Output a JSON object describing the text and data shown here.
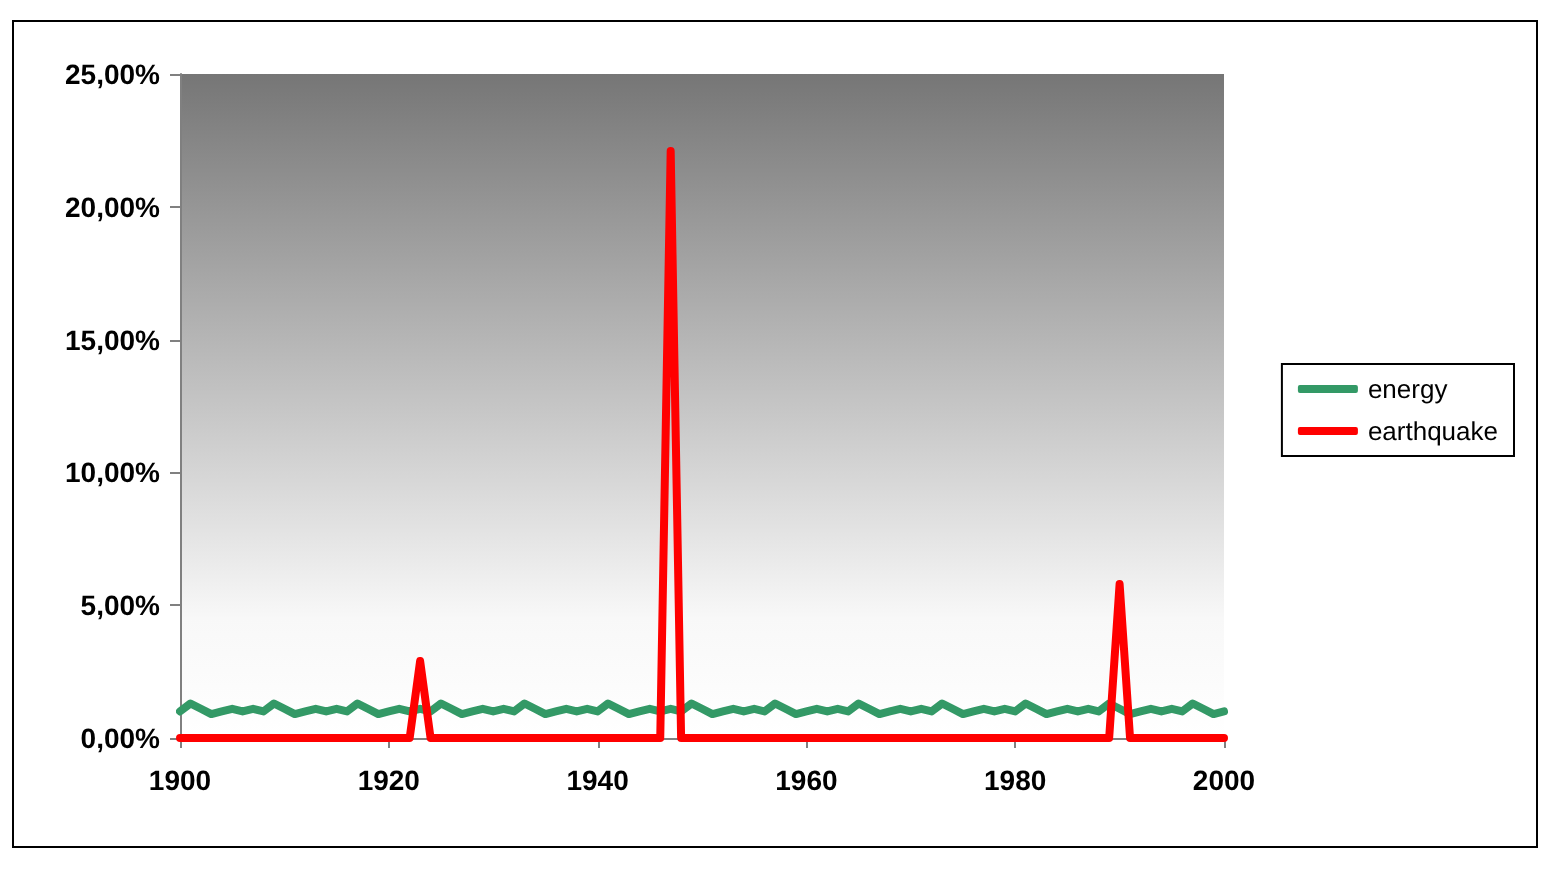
{
  "chart_data": {
    "type": "line",
    "x": [
      1900,
      1901,
      1902,
      1903,
      1904,
      1905,
      1906,
      1907,
      1908,
      1909,
      1910,
      1911,
      1912,
      1913,
      1914,
      1915,
      1916,
      1917,
      1918,
      1919,
      1920,
      1921,
      1922,
      1923,
      1924,
      1925,
      1926,
      1927,
      1928,
      1929,
      1930,
      1931,
      1932,
      1933,
      1934,
      1935,
      1936,
      1937,
      1938,
      1939,
      1940,
      1941,
      1942,
      1943,
      1944,
      1945,
      1946,
      1947,
      1948,
      1949,
      1950,
      1951,
      1952,
      1953,
      1954,
      1955,
      1956,
      1957,
      1958,
      1959,
      1960,
      1961,
      1962,
      1963,
      1964,
      1965,
      1966,
      1967,
      1968,
      1969,
      1970,
      1971,
      1972,
      1973,
      1974,
      1975,
      1976,
      1977,
      1978,
      1979,
      1980,
      1981,
      1982,
      1983,
      1984,
      1985,
      1986,
      1987,
      1988,
      1989,
      1990,
      1991,
      1992,
      1993,
      1994,
      1995,
      1996,
      1997,
      1998,
      1999,
      2000
    ],
    "series": [
      {
        "name": "energy",
        "color": "#339966",
        "values": [
          1.0,
          1.3,
          1.1,
          0.9,
          1.0,
          1.1,
          1.0,
          1.1,
          1.0,
          1.3,
          1.1,
          0.9,
          1.0,
          1.1,
          1.0,
          1.1,
          1.0,
          1.3,
          1.1,
          0.9,
          1.0,
          1.1,
          1.0,
          1.1,
          1.0,
          1.3,
          1.1,
          0.9,
          1.0,
          1.1,
          1.0,
          1.1,
          1.0,
          1.3,
          1.1,
          0.9,
          1.0,
          1.1,
          1.0,
          1.1,
          1.0,
          1.3,
          1.1,
          0.9,
          1.0,
          1.1,
          1.0,
          1.1,
          1.0,
          1.3,
          1.1,
          0.9,
          1.0,
          1.1,
          1.0,
          1.1,
          1.0,
          1.3,
          1.1,
          0.9,
          1.0,
          1.1,
          1.0,
          1.1,
          1.0,
          1.3,
          1.1,
          0.9,
          1.0,
          1.1,
          1.0,
          1.1,
          1.0,
          1.3,
          1.1,
          0.9,
          1.0,
          1.1,
          1.0,
          1.1,
          1.0,
          1.3,
          1.1,
          0.9,
          1.0,
          1.1,
          1.0,
          1.1,
          1.0,
          1.3,
          1.1,
          0.9,
          1.0,
          1.1,
          1.0,
          1.1,
          1.0,
          1.3,
          1.1,
          0.9,
          1.0
        ]
      },
      {
        "name": "earthquake",
        "color": "#ff0000",
        "values": [
          0,
          0,
          0,
          0,
          0,
          0,
          0,
          0,
          0,
          0,
          0,
          0,
          0,
          0,
          0,
          0,
          0,
          0,
          0,
          0,
          0,
          0,
          0,
          2.9,
          0,
          0,
          0,
          0,
          0,
          0,
          0,
          0,
          0,
          0,
          0,
          0,
          0,
          0,
          0,
          0,
          0,
          0,
          0,
          0,
          0,
          0,
          0,
          22.1,
          0,
          0,
          0,
          0,
          0,
          0,
          0,
          0,
          0,
          0,
          0,
          0,
          0,
          0,
          0,
          0,
          0,
          0,
          0,
          0,
          0,
          0,
          0,
          0,
          0,
          0,
          0,
          0,
          0,
          0,
          0,
          0,
          0,
          0,
          0,
          0,
          0,
          0,
          0,
          0,
          0,
          0,
          5.8,
          0,
          0,
          0,
          0,
          0,
          0,
          0,
          0,
          0,
          0
        ]
      }
    ],
    "xlim": [
      1900,
      2000
    ],
    "xticks": [
      1900,
      1920,
      1940,
      1960,
      1980,
      2000
    ],
    "ylim": [
      0,
      25
    ],
    "yticks": [
      {
        "value": 0,
        "label": "0,00%"
      },
      {
        "value": 5,
        "label": "5,00%"
      },
      {
        "value": 10,
        "label": "10,00%"
      },
      {
        "value": 15,
        "label": "15,00%"
      },
      {
        "value": 20,
        "label": "20,00%"
      },
      {
        "value": 25,
        "label": "25,00%"
      }
    ],
    "legend": "right",
    "marker": "none",
    "line_style": "solid",
    "grid": false
  }
}
